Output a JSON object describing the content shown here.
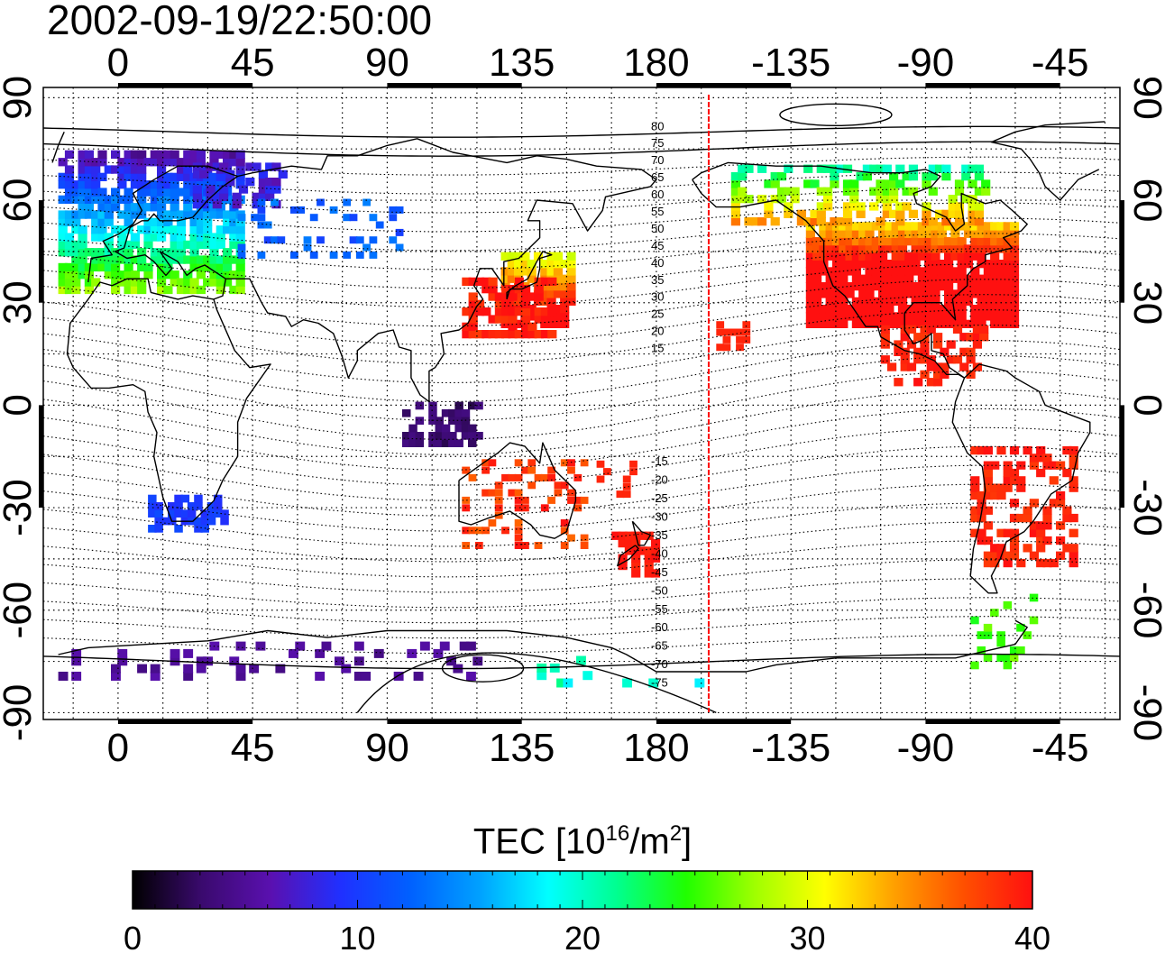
{
  "title": "2002-09-19/22:50:00",
  "colorbar": {
    "label_prefix": "TEC  [10",
    "label_exp1": "16",
    "label_mid": "/m",
    "label_exp2": "2",
    "label_suffix": "]",
    "min": 0,
    "max": 40,
    "ticks": [
      "0",
      "10",
      "20",
      "30",
      "40"
    ],
    "colors": [
      "#000000",
      "#3a0a6e",
      "#5a10b0",
      "#2030ff",
      "#0060ff",
      "#00a0ff",
      "#00ffff",
      "#00ff90",
      "#20ff00",
      "#a0ff00",
      "#ffff00",
      "#ffa000",
      "#ff5000",
      "#ff1010"
    ]
  },
  "map": {
    "lon_ticks_top": [
      "0",
      "45",
      "90",
      "135",
      "180",
      "-135",
      "-90",
      "-45"
    ],
    "lon_ticks_bottom": [
      "0",
      "45",
      "90",
      "135",
      "180",
      "-135",
      "-90",
      "-45"
    ],
    "lat_ticks_left": [
      "90",
      "60",
      "30",
      "0",
      "-30",
      "-60",
      "-90"
    ],
    "lat_ticks_right": [
      "90",
      "60",
      "30",
      "0",
      "-30",
      "-60",
      "-90"
    ],
    "lon_tick_values": [
      0,
      45,
      90,
      135,
      180,
      225,
      270,
      315
    ],
    "lat_tick_values": [
      90,
      60,
      30,
      0,
      -30,
      -60,
      -90
    ],
    "lon_range": [
      -25,
      335
    ],
    "lat_range": [
      -92,
      93
    ],
    "terminator_lon": 197.5,
    "terminator_color": "#ff0000",
    "contour_labels_north": [
      "80",
      "75",
      "70",
      "65",
      "60",
      "55",
      "50",
      "45",
      "40",
      "35",
      "30",
      "25",
      "20",
      "15"
    ],
    "contour_labels_south": [
      "-15",
      "-20",
      "-25",
      "-30",
      "-35",
      "-40",
      "-45",
      "-50",
      "-55",
      "-60",
      "-65",
      "-70",
      "-75"
    ]
  }
}
